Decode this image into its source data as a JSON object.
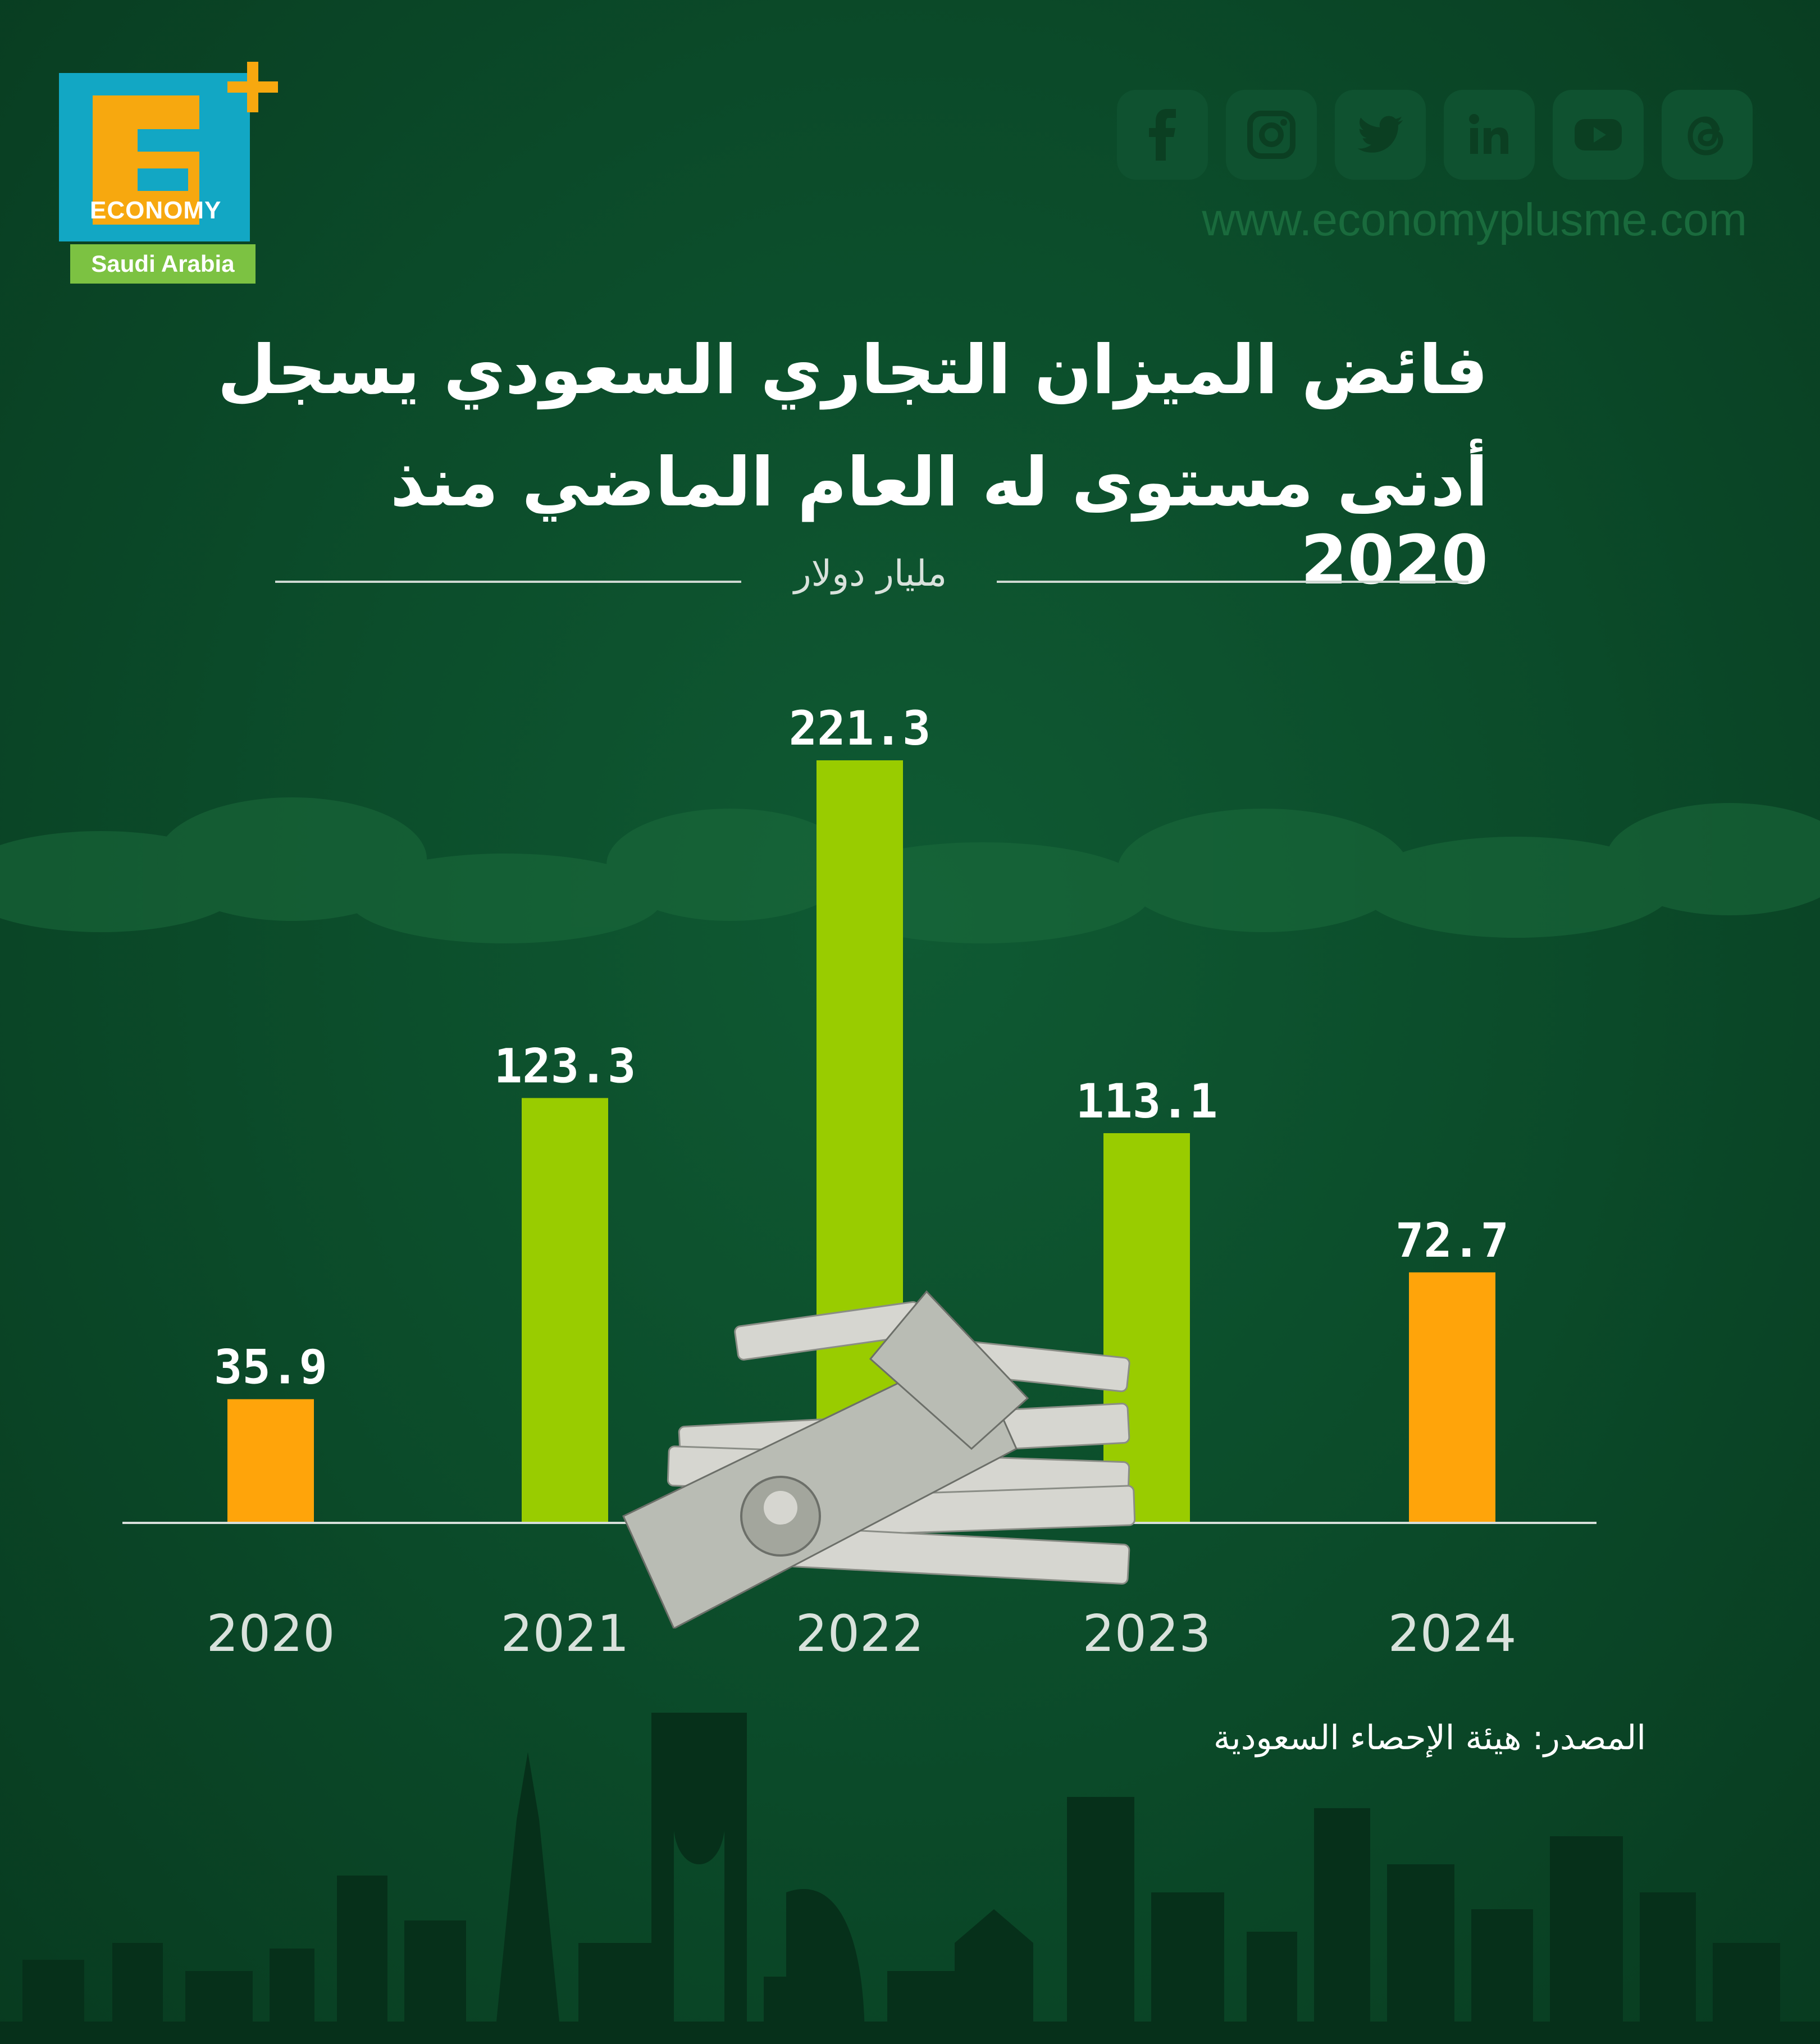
{
  "logo": {
    "letter": "E",
    "word": "ECONOMY",
    "region": "Saudi Arabia"
  },
  "social": {
    "icons": [
      "facebook-icon",
      "instagram-icon",
      "twitter-icon",
      "linkedin-icon",
      "youtube-icon",
      "threads-icon"
    ],
    "website": "www.economyplusme.com"
  },
  "title": {
    "line1": "فائض الميزان التجاري السعودي يسجل",
    "line2": "أدنى مستوى له العام الماضي منذ 2020"
  },
  "source": "المصدر: هيئة الإحصاء السعودية",
  "colors": {
    "background": "#0b4a29",
    "orange": "#ffa40a",
    "green": "#99cc00",
    "text": "#ffffff"
  },
  "chart_data": {
    "type": "bar",
    "unit": "مليار دولار",
    "categories": [
      "2020",
      "2021",
      "2022",
      "2023",
      "2024"
    ],
    "values": [
      35.9,
      123.3,
      221.3,
      113.1,
      72.7
    ],
    "value_labels": [
      "35.9",
      "123.3",
      "221.3",
      "113.1",
      "72.7"
    ],
    "bar_colors": [
      "#ffa40a",
      "#99cc00",
      "#99cc00",
      "#99cc00",
      "#ffa40a"
    ],
    "ylim": [
      0,
      221.3
    ],
    "grid": false
  }
}
